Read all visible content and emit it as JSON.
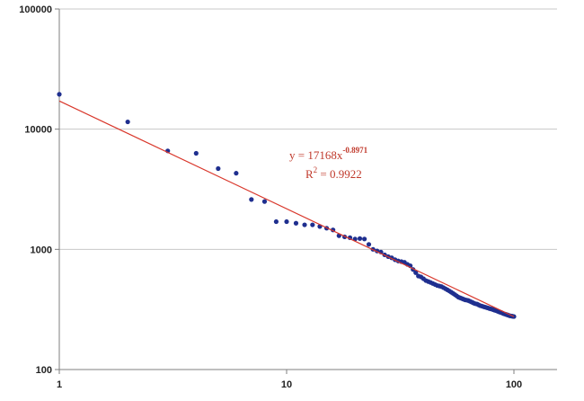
{
  "chart_data": {
    "type": "scatter",
    "title": "",
    "xlabel": "",
    "ylabel": "",
    "x_scale": "log",
    "y_scale": "log",
    "xlim": [
      1,
      100
    ],
    "ylim": [
      100,
      100000
    ],
    "x_ticks": [
      1,
      10,
      100
    ],
    "y_ticks": [
      100,
      1000,
      10000,
      100000
    ],
    "x_tick_labels": [
      "1",
      "10",
      "100"
    ],
    "y_tick_labels": [
      "100",
      "1000",
      "10000",
      "100000"
    ],
    "grid": "horizontal",
    "legend": "none",
    "colors": {
      "points": "#1f2f8f",
      "trend": "#d9372b",
      "gridline": "#c8c8c8",
      "axis": "#7f7f7f"
    },
    "series": [
      {
        "x": [
          1,
          2,
          3,
          4,
          5,
          6,
          7,
          8,
          9,
          10,
          11,
          12,
          13,
          14,
          15,
          16,
          17,
          18,
          19,
          20,
          21,
          22,
          23,
          24,
          25,
          26,
          27,
          28,
          29,
          30,
          31,
          32,
          33,
          34,
          35,
          36,
          37,
          38,
          39,
          40,
          41,
          42,
          43,
          44,
          45,
          46,
          47,
          48,
          49,
          50,
          51,
          52,
          53,
          54,
          55,
          56,
          57,
          58,
          59,
          60,
          61,
          62,
          63,
          64,
          65,
          66,
          67,
          68,
          69,
          70,
          71,
          72,
          73,
          74,
          75,
          76,
          77,
          78,
          79,
          80,
          81,
          82,
          83,
          84,
          85,
          86,
          87,
          88,
          89,
          90,
          91,
          92,
          93,
          94,
          95,
          96,
          97,
          98,
          99,
          100
        ],
        "y": [
          19500,
          11500,
          6600,
          6300,
          4700,
          4300,
          2600,
          2500,
          1700,
          1700,
          1650,
          1600,
          1600,
          1550,
          1500,
          1450,
          1300,
          1270,
          1250,
          1220,
          1230,
          1220,
          1100,
          1000,
          970,
          950,
          900,
          870,
          850,
          820,
          800,
          790,
          780,
          750,
          730,
          680,
          640,
          600,
          590,
          570,
          550,
          540,
          530,
          520,
          510,
          500,
          495,
          490,
          480,
          470,
          460,
          450,
          440,
          430,
          420,
          410,
          400,
          395,
          390,
          385,
          380,
          378,
          375,
          370,
          365,
          360,
          355,
          352,
          350,
          345,
          340,
          338,
          335,
          332,
          330,
          327,
          325,
          322,
          320,
          318,
          315,
          312,
          310,
          308,
          305,
          302,
          300,
          298,
          295,
          292,
          290,
          288,
          286,
          284,
          282,
          280,
          279,
          278,
          277,
          276
        ]
      }
    ],
    "trendline": {
      "type": "power",
      "a": 17168,
      "b": -0.8971,
      "equation_lhs": "y  =  17168x",
      "equation_exponent": "-0.8971",
      "r2_lhs": "R",
      "r2_exp": "2",
      "r2_rhs": "  =  0.9922"
    }
  }
}
